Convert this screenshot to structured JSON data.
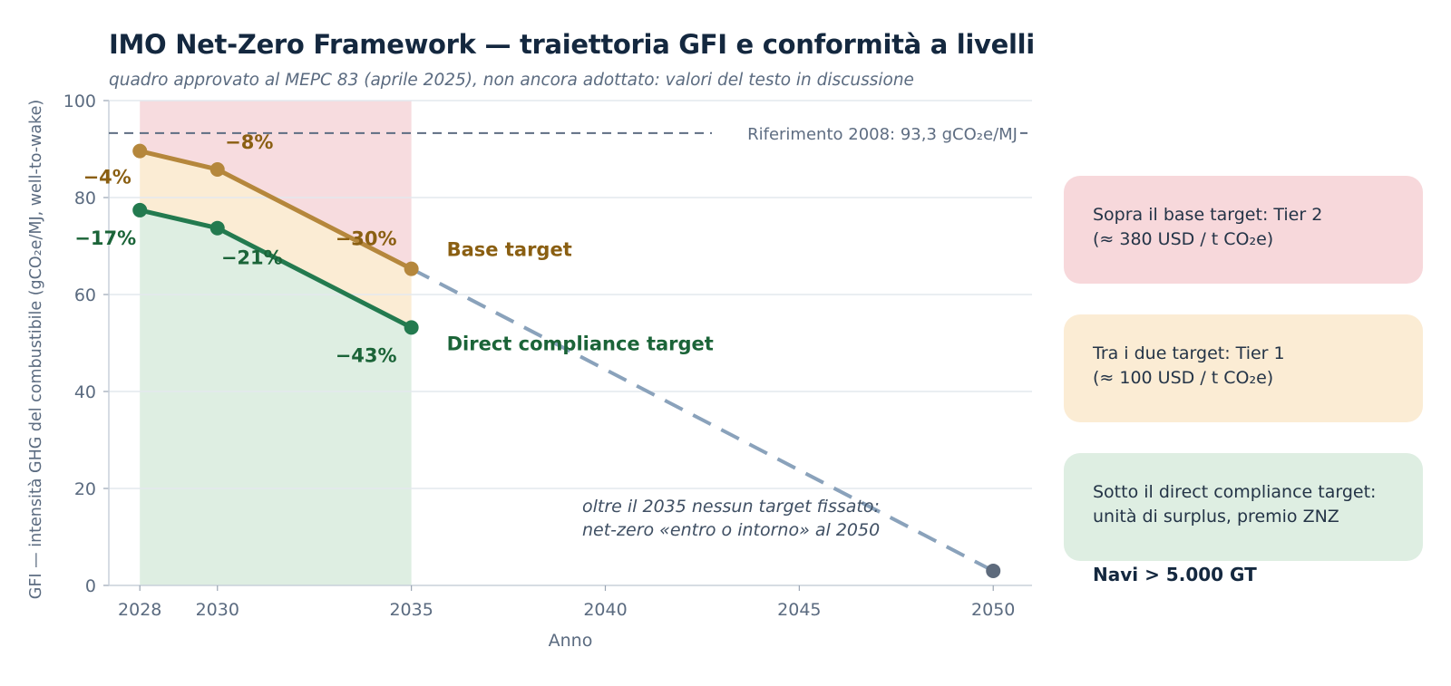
{
  "title": "IMO Net-Zero Framework — traiettoria GFI e conformità a livelli",
  "subtitle": "quadro approvato al MEPC 83 (aprile 2025), non ancora adottato: valori del testo in discussione",
  "chart_data": {
    "type": "line",
    "xlabel": "Anno",
    "ylabel": "GFI — intensità GHG del combustibile (gCO₂e/MJ, well-to-wake)",
    "xlim": [
      2027.2,
      2051
    ],
    "ylim": [
      0,
      100
    ],
    "xticks": [
      2028,
      2030,
      2035,
      2040,
      2045,
      2050
    ],
    "yticks": [
      0,
      20,
      40,
      60,
      80,
      100
    ],
    "grid": "horizontal",
    "reference": {
      "label": "Riferimento 2008: 93,3 gCO₂e/MJ",
      "value": 93.3
    },
    "series": [
      {
        "name": "Base target",
        "color": "#b5873c",
        "label_color": "#8a5f12",
        "x": [
          2028,
          2030,
          2035
        ],
        "y": [
          89.6,
          85.8,
          65.3
        ],
        "point_labels": [
          "−4%",
          "−8%",
          "−30%"
        ]
      },
      {
        "name": "Direct compliance target",
        "color": "#237a4f",
        "label_color": "#1b6438",
        "x": [
          2028,
          2030,
          2035
        ],
        "y": [
          77.4,
          73.7,
          53.2
        ],
        "point_labels": [
          "−17%",
          "−21%",
          "−43%"
        ]
      }
    ],
    "projection": {
      "x": [
        2035,
        2050
      ],
      "y": [
        65.3,
        3.0
      ],
      "color": "#8aa2bb",
      "end_color": "#5e6b7d"
    },
    "bands": [
      {
        "name": "tier2",
        "color": "#f7dcdf"
      },
      {
        "name": "tier1",
        "color": "#fbecd4"
      },
      {
        "name": "surplus",
        "color": "#deeee2"
      }
    ],
    "annotation": [
      "oltre il 2035 nessun target fissato:",
      "net-zero «entro o intorno» al 2050"
    ]
  },
  "tiers": [
    {
      "lines": [
        "Sopra il base target: Tier 2",
        "(≈ 380 USD / t CO₂e)"
      ],
      "color": "#f7d8db"
    },
    {
      "lines": [
        "Tra i due target: Tier 1",
        "(≈ 100 USD / t CO₂e)"
      ],
      "color": "#fbecd4"
    },
    {
      "lines": [
        "Sotto il direct compliance target:",
        "unità di surplus, premio ZNZ"
      ],
      "color": "#deeee2"
    }
  ],
  "ships_label": "Navi > 5.000 GT"
}
